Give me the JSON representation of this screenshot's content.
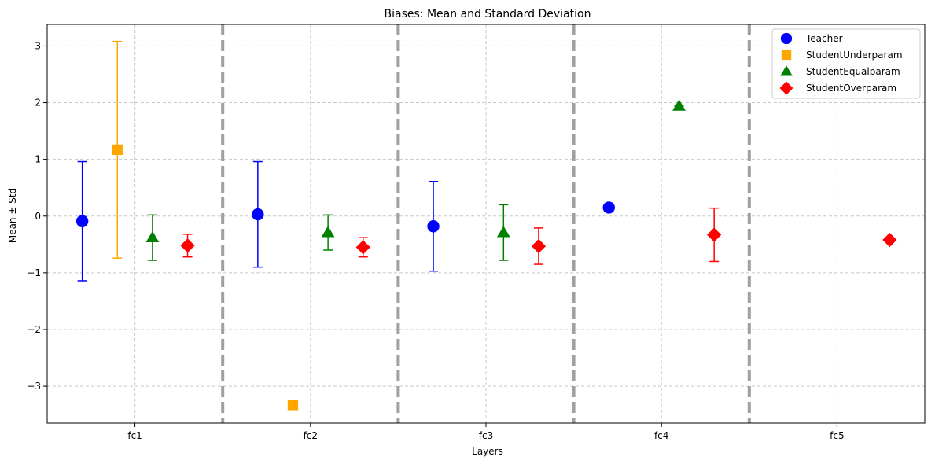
{
  "chart_data": {
    "type": "scatter",
    "title": "Biases: Mean and Standard Deviation",
    "xlabel": "Layers",
    "ylabel": "Mean ± Std",
    "categories": [
      "fc1",
      "fc2",
      "fc3",
      "fc4",
      "fc5"
    ],
    "ylim": [
      -3.65,
      3.38
    ],
    "yticks": [
      -3,
      -2,
      -1,
      0,
      1,
      2,
      3
    ],
    "grid": true,
    "legend_position": "top-right",
    "separators_after": [
      0,
      1,
      2,
      3
    ],
    "series": [
      {
        "name": "Teacher",
        "color": "#0000ff",
        "marker": "circle",
        "offset": -0.3,
        "points": [
          {
            "layer": "fc1",
            "mean": -0.09,
            "std": 1.05
          },
          {
            "layer": "fc2",
            "mean": 0.03,
            "std": 0.93
          },
          {
            "layer": "fc3",
            "mean": -0.18,
            "std": 0.79
          },
          {
            "layer": "fc4",
            "mean": 0.15,
            "std": 0.0
          }
        ]
      },
      {
        "name": "StudentUnderparam",
        "color": "#ffa500",
        "marker": "square",
        "offset": -0.1,
        "points": [
          {
            "layer": "fc1",
            "mean": 1.17,
            "std": 1.91
          },
          {
            "layer": "fc2",
            "mean": -3.33,
            "std": 0.0
          }
        ]
      },
      {
        "name": "StudentEqualparam",
        "color": "#008000",
        "marker": "triangle",
        "offset": 0.1,
        "points": [
          {
            "layer": "fc1",
            "mean": -0.38,
            "std": 0.4
          },
          {
            "layer": "fc2",
            "mean": -0.29,
            "std": 0.31
          },
          {
            "layer": "fc3",
            "mean": -0.29,
            "std": 0.49
          },
          {
            "layer": "fc4",
            "mean": 1.94,
            "std": 0.0
          }
        ]
      },
      {
        "name": "StudentOverparam",
        "color": "#ff0000",
        "marker": "diamond",
        "offset": 0.3,
        "points": [
          {
            "layer": "fc1",
            "mean": -0.52,
            "std": 0.2
          },
          {
            "layer": "fc2",
            "mean": -0.55,
            "std": 0.17
          },
          {
            "layer": "fc3",
            "mean": -0.53,
            "std": 0.32
          },
          {
            "layer": "fc4",
            "mean": -0.33,
            "std": 0.47
          },
          {
            "layer": "fc5",
            "mean": -0.42,
            "std": 0.0
          }
        ]
      }
    ]
  }
}
